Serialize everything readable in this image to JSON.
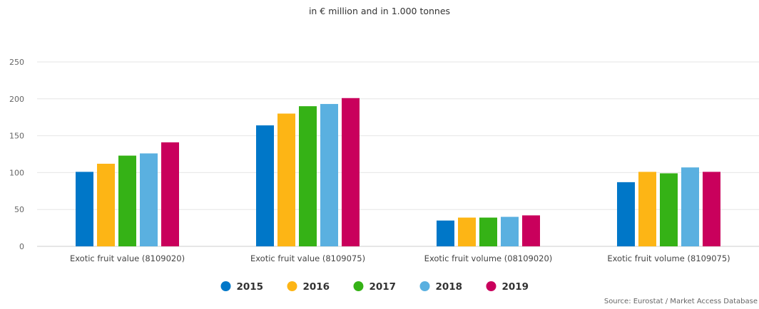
{
  "chart_data": {
    "type": "bar",
    "title": "",
    "subtitle": "in € million and in 1.000 tonnes",
    "categories": [
      "Exotic fruit value (8109020)",
      "Exotic fruit value (8109075)",
      "Exotic fruit volume (08109020)",
      "Exotic fruit volume (8109075)"
    ],
    "series": [
      {
        "name": "2015",
        "color": "#0077c8",
        "values": [
          101,
          164,
          35,
          87
        ]
      },
      {
        "name": "2016",
        "color": "#fdb515",
        "values": [
          112,
          180,
          39,
          101
        ]
      },
      {
        "name": "2017",
        "color": "#35b216",
        "values": [
          123,
          190,
          39,
          99
        ]
      },
      {
        "name": "2018",
        "color": "#5ab0e0",
        "values": [
          126,
          193,
          40,
          107
        ]
      },
      {
        "name": "2019",
        "color": "#c9005c",
        "values": [
          141,
          201,
          42,
          101
        ]
      }
    ],
    "xlabel": "",
    "ylabel": "",
    "ylim": [
      0,
      250
    ],
    "yticks": [
      0,
      50,
      100,
      150,
      200,
      250
    ],
    "grid": true,
    "legend_position": "bottom-center",
    "source": "Source: Eurostat / Market Access Database"
  }
}
